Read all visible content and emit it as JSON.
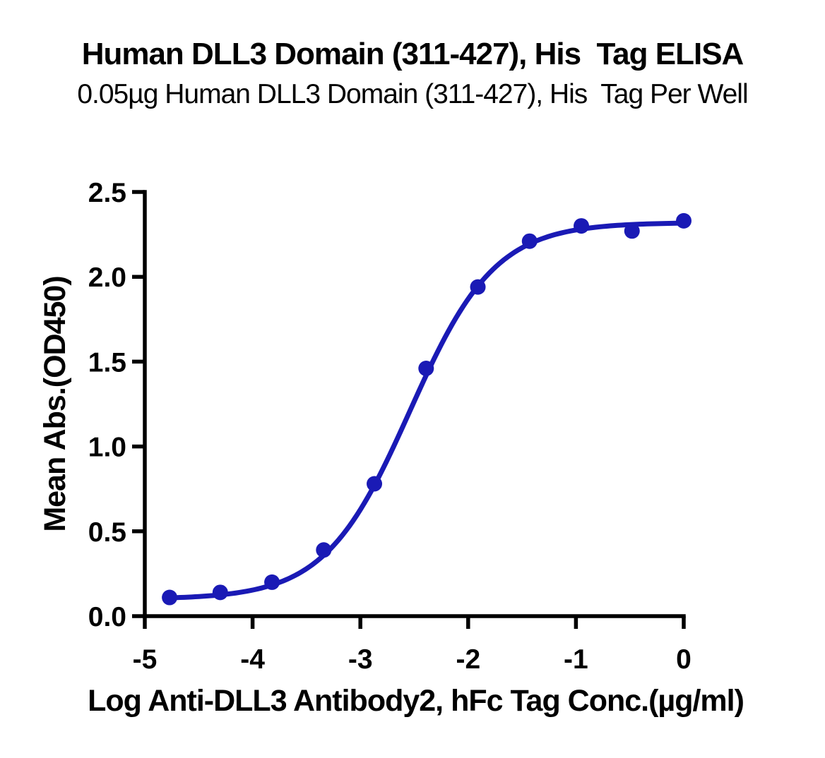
{
  "chart_data": {
    "type": "scatter",
    "title": "Human DLL3 Domain (311-427), His  Tag ELISA",
    "subtitle": "0.05µg Human DLL3 Domain (311-427), His  Tag Per Well",
    "xlabel": "Log Anti-DLL3 Antibody2, hFc Tag Conc.(µg/ml)",
    "ylabel": "Mean Abs.(OD450)",
    "xlim": [
      -5,
      0
    ],
    "ylim": [
      0,
      2.5
    ],
    "x_ticks": [
      -5,
      -4,
      -3,
      -2,
      -1,
      0
    ],
    "y_ticks": [
      0.0,
      0.5,
      1.0,
      1.5,
      2.0,
      2.5
    ],
    "grid": false,
    "legend": "none",
    "x": [
      -4.77,
      -4.3,
      -3.82,
      -3.34,
      -2.87,
      -2.39,
      -1.91,
      -1.43,
      -0.95,
      -0.48,
      0.0
    ],
    "y": [
      0.11,
      0.14,
      0.2,
      0.39,
      0.78,
      1.46,
      1.94,
      2.21,
      2.3,
      2.27,
      2.33
    ],
    "curve_fit": {
      "model": "4PL",
      "bottom": 0.1,
      "top": 2.32,
      "logEC50": -2.54,
      "hill": 1.1
    },
    "line_color": "#1A1AB5",
    "marker_color": "#1A1AB5",
    "axis_color": "#000000"
  }
}
